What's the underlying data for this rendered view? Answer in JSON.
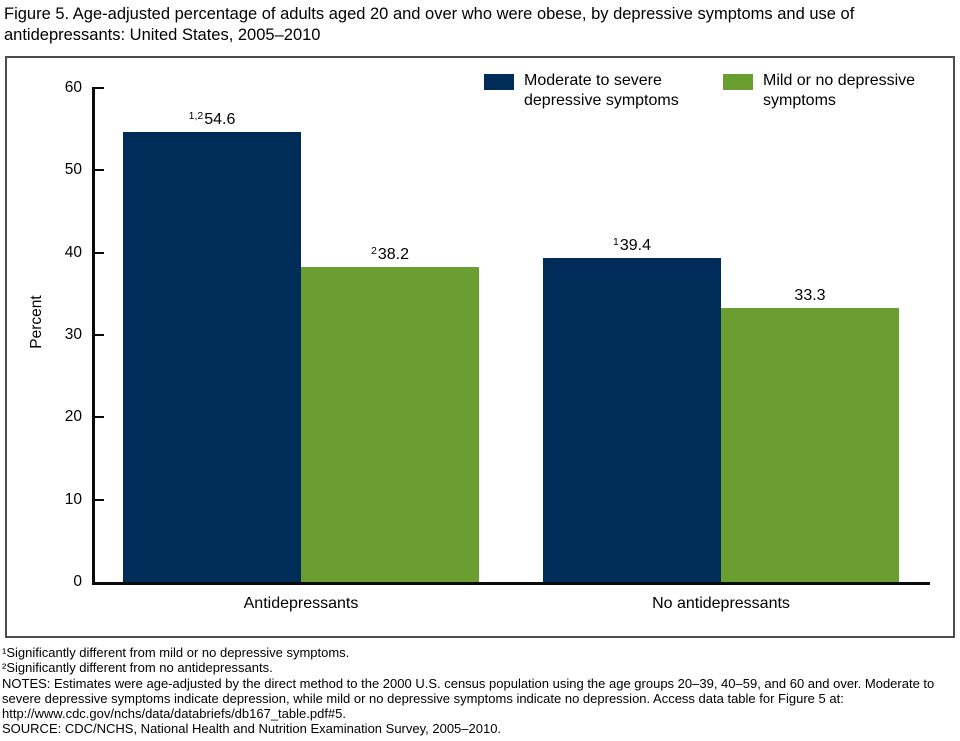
{
  "figure": {
    "title": "Figure 5. Age-adjusted percentage of adults aged 20 and over who were obese, by depressive symptoms and use of antidepressants: United States, 2005–2010"
  },
  "chart_data": {
    "type": "bar",
    "title": "Age-adjusted percentage of adults aged 20 and over who were obese, by depressive symptoms and use of antidepressants: United States, 2005–2010",
    "categories": [
      "Antidepressants",
      "No antidepressants"
    ],
    "series": [
      {
        "name": "Moderate to severe depressive symptoms",
        "color": "#002c5a",
        "values": [
          54.6,
          39.4
        ],
        "label_superscripts": [
          "1,2",
          "1"
        ]
      },
      {
        "name": "Mild or no depressive symptoms",
        "color": "#6a9e31",
        "values": [
          38.2,
          33.3
        ],
        "label_superscripts": [
          "2",
          ""
        ]
      }
    ],
    "ylabel": "Percent",
    "xlabel": "",
    "ylim": [
      0,
      60
    ],
    "yticks": [
      0,
      10,
      20,
      30,
      40,
      50,
      60
    ],
    "grid": false,
    "legend_position": "top-right"
  },
  "footnotes": {
    "line1": "¹Significantly different from mild or no depressive symptoms.",
    "line2": "²Significantly different from no antidepressants.",
    "notes": "NOTES: Estimates were age-adjusted by the direct method to the 2000 U.S. census population using the age groups 20–39, 40–59, and 60 and over. Moderate to severe depressive symptoms indicate depression, while mild or no depressive symptoms indicate no depression. Access data table for Figure 5 at: http://www.cdc.gov/nchs/data/databriefs/db167_table.pdf#5.",
    "source": "SOURCE: CDC/NCHS, National Health and Nutrition Examination Survey, 2005–2010."
  }
}
